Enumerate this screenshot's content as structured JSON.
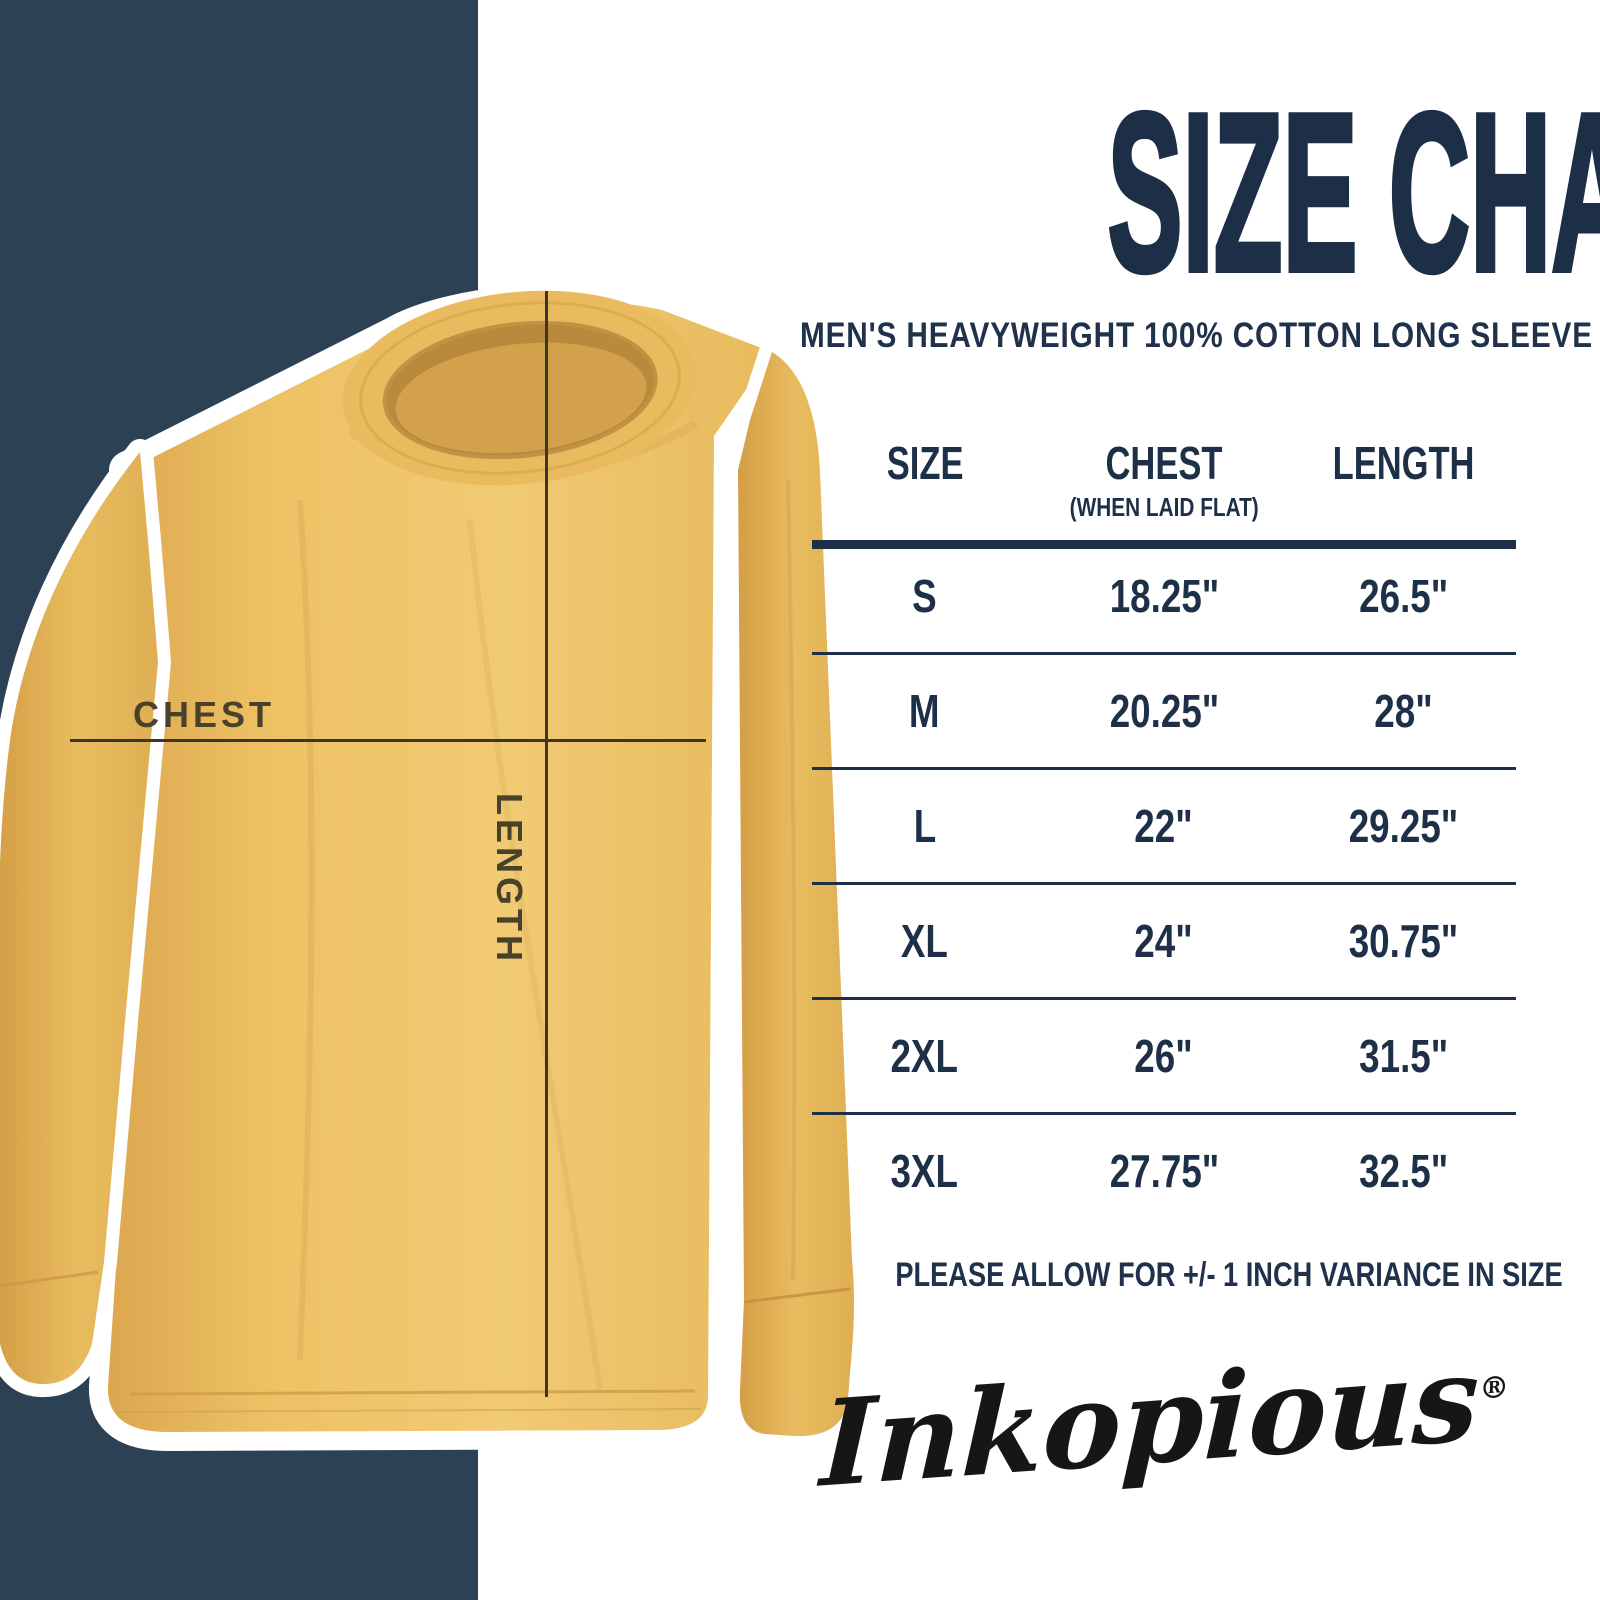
{
  "title": "SIZE CHART",
  "subtitle": "MEN'S HEAVYWEIGHT 100% COTTON LONG SLEEVE",
  "table": {
    "headers": [
      "SIZE",
      "CHEST",
      "LENGTH"
    ],
    "chest_subheader": "(WHEN LAID FLAT)",
    "rows": [
      {
        "size": "S",
        "chest": "18.25\"",
        "length": "26.5\""
      },
      {
        "size": "M",
        "chest": "20.25\"",
        "length": "28\""
      },
      {
        "size": "L",
        "chest": "22\"",
        "length": "29.25\""
      },
      {
        "size": "XL",
        "chest": "24\"",
        "length": "30.75\""
      },
      {
        "size": "2XL",
        "chest": "26\"",
        "length": "31.5\""
      },
      {
        "size": "3XL",
        "chest": "27.75\"",
        "length": "32.5\""
      }
    ]
  },
  "note": "PLEASE ALLOW FOR +/- 1 INCH VARIANCE IN SIZE",
  "brand": "Inkopious",
  "brand_mark": "®",
  "shirt_annotations": {
    "chest_label": "CHEST",
    "length_label": "LENGTH"
  },
  "colors": {
    "navy_block": "#2d4154",
    "navy_text": "#1e3048",
    "shirt_main": "#eec267",
    "shirt_shadow": "#d9a74e",
    "collar_inner": "#bd8d3e",
    "measure_line": "#3c3626",
    "label_olive": "#494129",
    "logo_black": "#161616",
    "background": "#ffffff"
  },
  "chart_data": {
    "type": "table",
    "title": "SIZE CHART",
    "subtitle": "MEN'S HEAVYWEIGHT 100% COTTON LONG SLEEVE",
    "columns": [
      "SIZE",
      "CHEST (WHEN LAID FLAT)",
      "LENGTH"
    ],
    "rows": [
      [
        "S",
        "18.25\"",
        "26.5\""
      ],
      [
        "M",
        "20.25\"",
        "28\""
      ],
      [
        "L",
        "22\"",
        "29.25\""
      ],
      [
        "XL",
        "24\"",
        "30.75\""
      ],
      [
        "2XL",
        "26\"",
        "31.5\""
      ],
      [
        "3XL",
        "27.75\"",
        "32.5\""
      ]
    ],
    "note": "PLEASE ALLOW FOR +/- 1 INCH VARIANCE IN SIZE"
  }
}
